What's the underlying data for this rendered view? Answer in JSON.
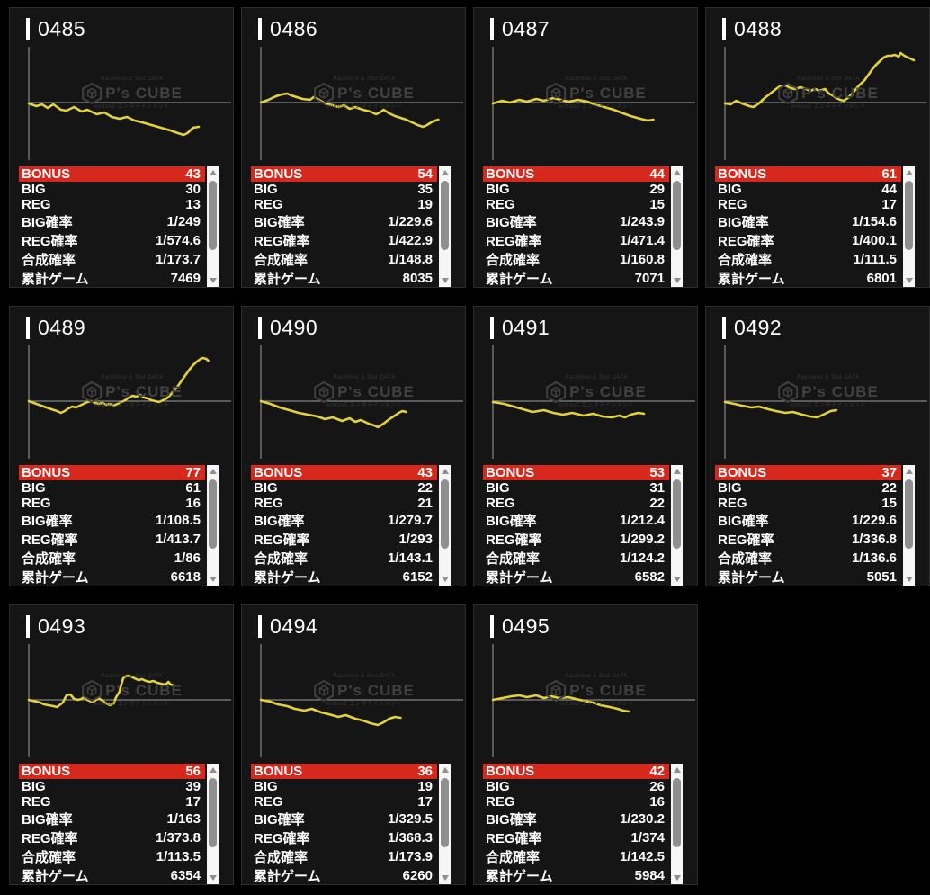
{
  "watermark": {
    "line1": "Pachinko & Slot DATA",
    "brand": "P's CUBE",
    "line2": "enbooZ エンタテインメント"
  },
  "labels": [
    "BONUS",
    "BIG",
    "REG",
    "BIG確率",
    "REG確率",
    "合成確率",
    "累計ゲーム"
  ],
  "colors": {
    "accent_red": "#d7281d",
    "line_yellow": "#e3d23c",
    "axis_gray": "#a0a0a0",
    "card_bg": "#151515",
    "page_bg": "#000000"
  },
  "machines": [
    {
      "id": "0485",
      "bonus": "43",
      "big": "30",
      "reg": "13",
      "big_rate": "1/249",
      "reg_rate": "1/574.6",
      "combined_rate": "1/173.7",
      "total_games": "7469",
      "graph": [
        [
          0,
          -1
        ],
        [
          0.04,
          -4
        ],
        [
          0.07,
          -2
        ],
        [
          0.1,
          -6
        ],
        [
          0.13,
          -2
        ],
        [
          0.17,
          -8
        ],
        [
          0.2,
          -9
        ],
        [
          0.24,
          -5
        ],
        [
          0.28,
          -10
        ],
        [
          0.31,
          -8
        ],
        [
          0.36,
          -13
        ],
        [
          0.4,
          -11
        ],
        [
          0.44,
          -16
        ],
        [
          0.48,
          -18
        ],
        [
          0.52,
          -16
        ],
        [
          0.56,
          -20
        ],
        [
          0.6,
          -22
        ],
        [
          0.65,
          -25
        ],
        [
          0.7,
          -28
        ],
        [
          0.75,
          -31
        ],
        [
          0.79,
          -34
        ],
        [
          0.82,
          -36
        ],
        [
          0.84,
          -34
        ],
        [
          0.87,
          -28
        ],
        [
          0.9,
          -27
        ]
      ]
    },
    {
      "id": "0486",
      "bonus": "54",
      "big": "35",
      "reg": "19",
      "big_rate": "1/229.6",
      "reg_rate": "1/422.9",
      "combined_rate": "1/148.8",
      "total_games": "8035",
      "graph": [
        [
          0,
          0
        ],
        [
          0.04,
          3
        ],
        [
          0.08,
          7
        ],
        [
          0.11,
          9
        ],
        [
          0.14,
          10
        ],
        [
          0.16,
          8
        ],
        [
          0.19,
          6
        ],
        [
          0.22,
          4
        ],
        [
          0.26,
          3
        ],
        [
          0.28,
          6
        ],
        [
          0.3,
          4
        ],
        [
          0.34,
          -1
        ],
        [
          0.38,
          -3
        ],
        [
          0.41,
          -5
        ],
        [
          0.44,
          -3
        ],
        [
          0.47,
          -7
        ],
        [
          0.5,
          -5
        ],
        [
          0.54,
          -8
        ],
        [
          0.58,
          -10
        ],
        [
          0.61,
          -13
        ],
        [
          0.63,
          -11
        ],
        [
          0.65,
          -8
        ],
        [
          0.68,
          -12
        ],
        [
          0.71,
          -15
        ],
        [
          0.74,
          -17
        ],
        [
          0.77,
          -19
        ],
        [
          0.8,
          -22
        ],
        [
          0.83,
          -25
        ],
        [
          0.86,
          -27
        ],
        [
          0.88,
          -25
        ],
        [
          0.91,
          -21
        ],
        [
          0.94,
          -19
        ]
      ]
    },
    {
      "id": "0487",
      "bonus": "44",
      "big": "29",
      "reg": "15",
      "big_rate": "1/243.9",
      "reg_rate": "1/471.4",
      "combined_rate": "1/160.8",
      "total_games": "7071",
      "graph": [
        [
          0,
          -1
        ],
        [
          0.05,
          2
        ],
        [
          0.09,
          0
        ],
        [
          0.14,
          3
        ],
        [
          0.18,
          1
        ],
        [
          0.23,
          4
        ],
        [
          0.27,
          2
        ],
        [
          0.32,
          5
        ],
        [
          0.36,
          3
        ],
        [
          0.4,
          1
        ],
        [
          0.45,
          3
        ],
        [
          0.5,
          1
        ],
        [
          0.54,
          -2
        ],
        [
          0.59,
          -5
        ],
        [
          0.64,
          -8
        ],
        [
          0.69,
          -12
        ],
        [
          0.73,
          -15
        ],
        [
          0.78,
          -18
        ],
        [
          0.82,
          -20
        ],
        [
          0.85,
          -19
        ]
      ]
    },
    {
      "id": "0488",
      "bonus": "61",
      "big": "44",
      "reg": "17",
      "big_rate": "1/154.6",
      "reg_rate": "1/400.1",
      "combined_rate": "1/111.5",
      "total_games": "6801",
      "graph": [
        [
          0,
          -1
        ],
        [
          0.03,
          -2
        ],
        [
          0.06,
          2
        ],
        [
          0.09,
          -1
        ],
        [
          0.13,
          -4
        ],
        [
          0.15,
          -5
        ],
        [
          0.18,
          -1
        ],
        [
          0.21,
          5
        ],
        [
          0.24,
          10
        ],
        [
          0.27,
          15
        ],
        [
          0.29,
          18
        ],
        [
          0.32,
          19
        ],
        [
          0.35,
          16
        ],
        [
          0.37,
          15
        ],
        [
          0.4,
          17
        ],
        [
          0.43,
          15
        ],
        [
          0.45,
          13
        ],
        [
          0.48,
          15
        ],
        [
          0.5,
          13
        ],
        [
          0.53,
          15
        ],
        [
          0.55,
          10
        ],
        [
          0.57,
          8
        ],
        [
          0.59,
          5
        ],
        [
          0.61,
          3
        ],
        [
          0.63,
          2
        ],
        [
          0.65,
          5
        ],
        [
          0.67,
          9
        ],
        [
          0.69,
          14
        ],
        [
          0.71,
          19
        ],
        [
          0.74,
          25
        ],
        [
          0.76,
          31
        ],
        [
          0.78,
          37
        ],
        [
          0.8,
          42
        ],
        [
          0.82,
          46
        ],
        [
          0.84,
          50
        ],
        [
          0.86,
          52
        ],
        [
          0.88,
          52
        ],
        [
          0.9,
          53
        ],
        [
          0.92,
          51
        ],
        [
          0.93,
          55
        ],
        [
          0.95,
          52
        ],
        [
          0.98,
          49
        ],
        [
          1.0,
          47
        ]
      ]
    },
    {
      "id": "0489",
      "bonus": "77",
      "big": "61",
      "reg": "16",
      "big_rate": "1/108.5",
      "reg_rate": "1/413.7",
      "combined_rate": "1/86",
      "total_games": "6618",
      "graph": [
        [
          0,
          0
        ],
        [
          0.04,
          -3
        ],
        [
          0.08,
          -6
        ],
        [
          0.12,
          -9
        ],
        [
          0.15,
          -11
        ],
        [
          0.17,
          -13
        ],
        [
          0.19,
          -11
        ],
        [
          0.21,
          -8
        ],
        [
          0.23,
          -6
        ],
        [
          0.25,
          -7
        ],
        [
          0.27,
          -5
        ],
        [
          0.29,
          -3
        ],
        [
          0.31,
          -1
        ],
        [
          0.33,
          0
        ],
        [
          0.35,
          -2
        ],
        [
          0.37,
          -3
        ],
        [
          0.39,
          -2
        ],
        [
          0.41,
          -4
        ],
        [
          0.43,
          -3
        ],
        [
          0.45,
          -5
        ],
        [
          0.47,
          -3
        ],
        [
          0.49,
          -1
        ],
        [
          0.51,
          1
        ],
        [
          0.53,
          4
        ],
        [
          0.55,
          6
        ],
        [
          0.57,
          5
        ],
        [
          0.59,
          7
        ],
        [
          0.61,
          4
        ],
        [
          0.63,
          3
        ],
        [
          0.65,
          1
        ],
        [
          0.67,
          0
        ],
        [
          0.69,
          -1
        ],
        [
          0.71,
          1
        ],
        [
          0.73,
          3
        ],
        [
          0.75,
          7
        ],
        [
          0.77,
          12
        ],
        [
          0.79,
          17
        ],
        [
          0.81,
          23
        ],
        [
          0.83,
          29
        ],
        [
          0.85,
          35
        ],
        [
          0.87,
          40
        ],
        [
          0.89,
          44
        ],
        [
          0.91,
          47
        ],
        [
          0.92,
          48
        ],
        [
          0.94,
          47
        ],
        [
          0.95,
          45
        ]
      ]
    },
    {
      "id": "0490",
      "bonus": "43",
      "big": "22",
      "reg": "21",
      "big_rate": "1/279.7",
      "reg_rate": "1/293",
      "combined_rate": "1/143.1",
      "total_games": "6152",
      "graph": [
        [
          0,
          0
        ],
        [
          0.05,
          -3
        ],
        [
          0.1,
          -7
        ],
        [
          0.15,
          -10
        ],
        [
          0.2,
          -13
        ],
        [
          0.25,
          -15
        ],
        [
          0.3,
          -17
        ],
        [
          0.34,
          -20
        ],
        [
          0.38,
          -18
        ],
        [
          0.43,
          -22
        ],
        [
          0.47,
          -19
        ],
        [
          0.5,
          -23
        ],
        [
          0.53,
          -21
        ],
        [
          0.57,
          -25
        ],
        [
          0.6,
          -27
        ],
        [
          0.62,
          -29
        ],
        [
          0.65,
          -25
        ],
        [
          0.68,
          -20
        ],
        [
          0.71,
          -16
        ],
        [
          0.73,
          -13
        ],
        [
          0.75,
          -11
        ],
        [
          0.77,
          -12
        ]
      ]
    },
    {
      "id": "0491",
      "bonus": "53",
      "big": "31",
      "reg": "22",
      "big_rate": "1/212.4",
      "reg_rate": "1/299.2",
      "combined_rate": "1/124.2",
      "total_games": "6582",
      "graph": [
        [
          0,
          -1
        ],
        [
          0.06,
          -3
        ],
        [
          0.11,
          -6
        ],
        [
          0.16,
          -9
        ],
        [
          0.21,
          -12
        ],
        [
          0.27,
          -10
        ],
        [
          0.32,
          -13
        ],
        [
          0.37,
          -15
        ],
        [
          0.42,
          -13
        ],
        [
          0.48,
          -16
        ],
        [
          0.53,
          -14
        ],
        [
          0.58,
          -17
        ],
        [
          0.63,
          -18
        ],
        [
          0.67,
          -16
        ],
        [
          0.7,
          -18
        ],
        [
          0.73,
          -15
        ],
        [
          0.77,
          -13
        ],
        [
          0.8,
          -14
        ]
      ]
    },
    {
      "id": "0492",
      "bonus": "37",
      "big": "22",
      "reg": "15",
      "big_rate": "1/229.6",
      "reg_rate": "1/336.8",
      "combined_rate": "1/136.6",
      "total_games": "5051",
      "graph": [
        [
          0,
          -1
        ],
        [
          0.05,
          -3
        ],
        [
          0.09,
          -5
        ],
        [
          0.14,
          -7
        ],
        [
          0.18,
          -6
        ],
        [
          0.23,
          -9
        ],
        [
          0.27,
          -11
        ],
        [
          0.32,
          -13
        ],
        [
          0.36,
          -12
        ],
        [
          0.41,
          -15
        ],
        [
          0.45,
          -17
        ],
        [
          0.49,
          -18
        ],
        [
          0.52,
          -15
        ],
        [
          0.56,
          -11
        ],
        [
          0.59,
          -10
        ]
      ]
    },
    {
      "id": "0493",
      "bonus": "56",
      "big": "39",
      "reg": "17",
      "big_rate": "1/163",
      "reg_rate": "1/373.8",
      "combined_rate": "1/113.5",
      "total_games": "6354",
      "graph": [
        [
          0,
          0
        ],
        [
          0.06,
          -3
        ],
        [
          0.08,
          -5
        ],
        [
          0.13,
          -7
        ],
        [
          0.15,
          -8
        ],
        [
          0.18,
          -3
        ],
        [
          0.2,
          5
        ],
        [
          0.22,
          6
        ],
        [
          0.24,
          1
        ],
        [
          0.26,
          0
        ],
        [
          0.28,
          1
        ],
        [
          0.29,
          3
        ],
        [
          0.31,
          0
        ],
        [
          0.33,
          -2
        ],
        [
          0.35,
          -1
        ],
        [
          0.37,
          2
        ],
        [
          0.39,
          -1
        ],
        [
          0.41,
          -4
        ],
        [
          0.43,
          -6
        ],
        [
          0.45,
          -4
        ],
        [
          0.46,
          2
        ],
        [
          0.48,
          9
        ],
        [
          0.49,
          17
        ],
        [
          0.5,
          24
        ],
        [
          0.52,
          27
        ],
        [
          0.54,
          26
        ],
        [
          0.56,
          24
        ],
        [
          0.58,
          22
        ],
        [
          0.6,
          23
        ],
        [
          0.62,
          21
        ],
        [
          0.64,
          20
        ],
        [
          0.66,
          21
        ],
        [
          0.68,
          19
        ],
        [
          0.7,
          18
        ],
        [
          0.72,
          17
        ],
        [
          0.73,
          18
        ],
        [
          0.74,
          20
        ],
        [
          0.75,
          17
        ],
        [
          0.77,
          16
        ]
      ]
    },
    {
      "id": "0494",
      "bonus": "36",
      "big": "19",
      "reg": "17",
      "big_rate": "1/329.5",
      "reg_rate": "1/368.3",
      "combined_rate": "1/173.9",
      "total_games": "6260",
      "graph": [
        [
          0,
          0
        ],
        [
          0.05,
          -2
        ],
        [
          0.09,
          -5
        ],
        [
          0.14,
          -7
        ],
        [
          0.18,
          -10
        ],
        [
          0.23,
          -12
        ],
        [
          0.27,
          -10
        ],
        [
          0.32,
          -14
        ],
        [
          0.36,
          -16
        ],
        [
          0.41,
          -19
        ],
        [
          0.45,
          -17
        ],
        [
          0.5,
          -21
        ],
        [
          0.54,
          -23
        ],
        [
          0.58,
          -26
        ],
        [
          0.62,
          -28
        ],
        [
          0.65,
          -25
        ],
        [
          0.68,
          -21
        ],
        [
          0.71,
          -19
        ],
        [
          0.74,
          -20
        ]
      ]
    },
    {
      "id": "0495",
      "bonus": "42",
      "big": "26",
      "reg": "16",
      "big_rate": "1/230.2",
      "reg_rate": "1/374",
      "combined_rate": "1/142.5",
      "total_games": "5984",
      "graph": [
        [
          0,
          0
        ],
        [
          0.05,
          2
        ],
        [
          0.1,
          4
        ],
        [
          0.14,
          5
        ],
        [
          0.18,
          3
        ],
        [
          0.23,
          5
        ],
        [
          0.27,
          2
        ],
        [
          0.31,
          4
        ],
        [
          0.35,
          2
        ],
        [
          0.4,
          3
        ],
        [
          0.44,
          1
        ],
        [
          0.48,
          -1
        ],
        [
          0.53,
          -3
        ],
        [
          0.57,
          -6
        ],
        [
          0.62,
          -8
        ],
        [
          0.66,
          -10
        ],
        [
          0.69,
          -12
        ],
        [
          0.72,
          -13
        ]
      ]
    }
  ]
}
